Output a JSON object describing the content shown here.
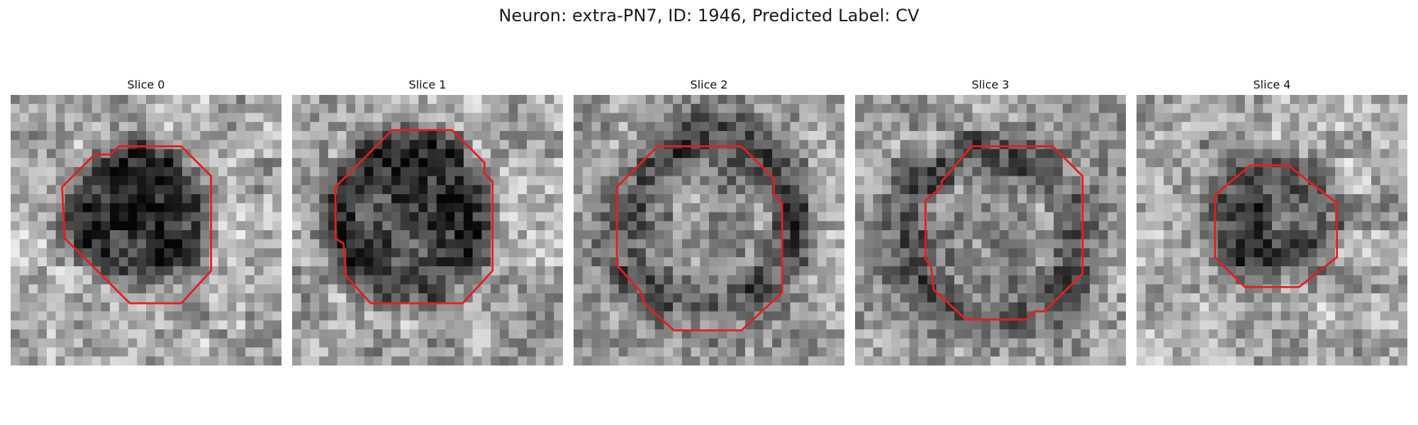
{
  "figure": {
    "title": "Neuron: extra-PN7, ID: 1946, Predicted Label: CV"
  },
  "contour_color": "#e51e1e",
  "panels": [
    {
      "title": "Slice 0",
      "seed": 11,
      "base_mean": 0.68,
      "dark_center": [
        0.47,
        0.44
      ],
      "dark_radius": [
        0.27,
        0.28
      ],
      "dark_strength": 0.5,
      "inner_bright": 0.0,
      "contour": [
        [
          0.4,
          0.19
        ],
        [
          0.63,
          0.19
        ],
        [
          0.74,
          0.3
        ],
        [
          0.74,
          0.65
        ],
        [
          0.63,
          0.77
        ],
        [
          0.44,
          0.77
        ],
        [
          0.2,
          0.53
        ],
        [
          0.19,
          0.34
        ],
        [
          0.31,
          0.22
        ],
        [
          0.37,
          0.22
        ]
      ]
    },
    {
      "title": "Slice 1",
      "seed": 23,
      "base_mean": 0.66,
      "dark_center": [
        0.42,
        0.45
      ],
      "dark_radius": [
        0.32,
        0.34
      ],
      "dark_strength": 0.46,
      "inner_bright": 0.08,
      "contour": [
        [
          0.37,
          0.13
        ],
        [
          0.59,
          0.13
        ],
        [
          0.71,
          0.25
        ],
        [
          0.71,
          0.29
        ],
        [
          0.74,
          0.32
        ],
        [
          0.74,
          0.65
        ],
        [
          0.63,
          0.77
        ],
        [
          0.29,
          0.77
        ],
        [
          0.2,
          0.67
        ],
        [
          0.19,
          0.55
        ],
        [
          0.16,
          0.53
        ],
        [
          0.16,
          0.34
        ]
      ]
    },
    {
      "title": "Slice 2",
      "seed": 37,
      "base_mean": 0.62,
      "dark_center": [
        0.5,
        0.48
      ],
      "dark_radius": [
        0.4,
        0.4
      ],
      "dark_strength": 0.3,
      "inner_bright": 0.22,
      "contour": [
        [
          0.31,
          0.19
        ],
        [
          0.62,
          0.19
        ],
        [
          0.74,
          0.31
        ],
        [
          0.74,
          0.37
        ],
        [
          0.77,
          0.4
        ],
        [
          0.77,
          0.73
        ],
        [
          0.62,
          0.87
        ],
        [
          0.37,
          0.87
        ],
        [
          0.26,
          0.77
        ],
        [
          0.25,
          0.73
        ],
        [
          0.16,
          0.63
        ],
        [
          0.16,
          0.34
        ]
      ]
    },
    {
      "title": "Slice 3",
      "seed": 53,
      "base_mean": 0.64,
      "dark_center": [
        0.5,
        0.52
      ],
      "dark_radius": [
        0.4,
        0.4
      ],
      "dark_strength": 0.32,
      "inner_bright": 0.25,
      "contour": [
        [
          0.43,
          0.19
        ],
        [
          0.73,
          0.19
        ],
        [
          0.84,
          0.3
        ],
        [
          0.84,
          0.66
        ],
        [
          0.7,
          0.8
        ],
        [
          0.66,
          0.8
        ],
        [
          0.63,
          0.83
        ],
        [
          0.41,
          0.83
        ],
        [
          0.29,
          0.72
        ],
        [
          0.28,
          0.63
        ],
        [
          0.26,
          0.61
        ],
        [
          0.26,
          0.39
        ],
        [
          0.32,
          0.34
        ],
        [
          0.32,
          0.32
        ]
      ]
    },
    {
      "title": "Slice 4",
      "seed": 71,
      "base_mean": 0.66,
      "dark_center": [
        0.5,
        0.45
      ],
      "dark_radius": [
        0.25,
        0.26
      ],
      "dark_strength": 0.36,
      "inner_bright": 0.0,
      "contour": [
        [
          0.42,
          0.26
        ],
        [
          0.56,
          0.26
        ],
        [
          0.74,
          0.4
        ],
        [
          0.74,
          0.6
        ],
        [
          0.6,
          0.71
        ],
        [
          0.4,
          0.71
        ],
        [
          0.29,
          0.6
        ],
        [
          0.29,
          0.37
        ]
      ]
    }
  ]
}
